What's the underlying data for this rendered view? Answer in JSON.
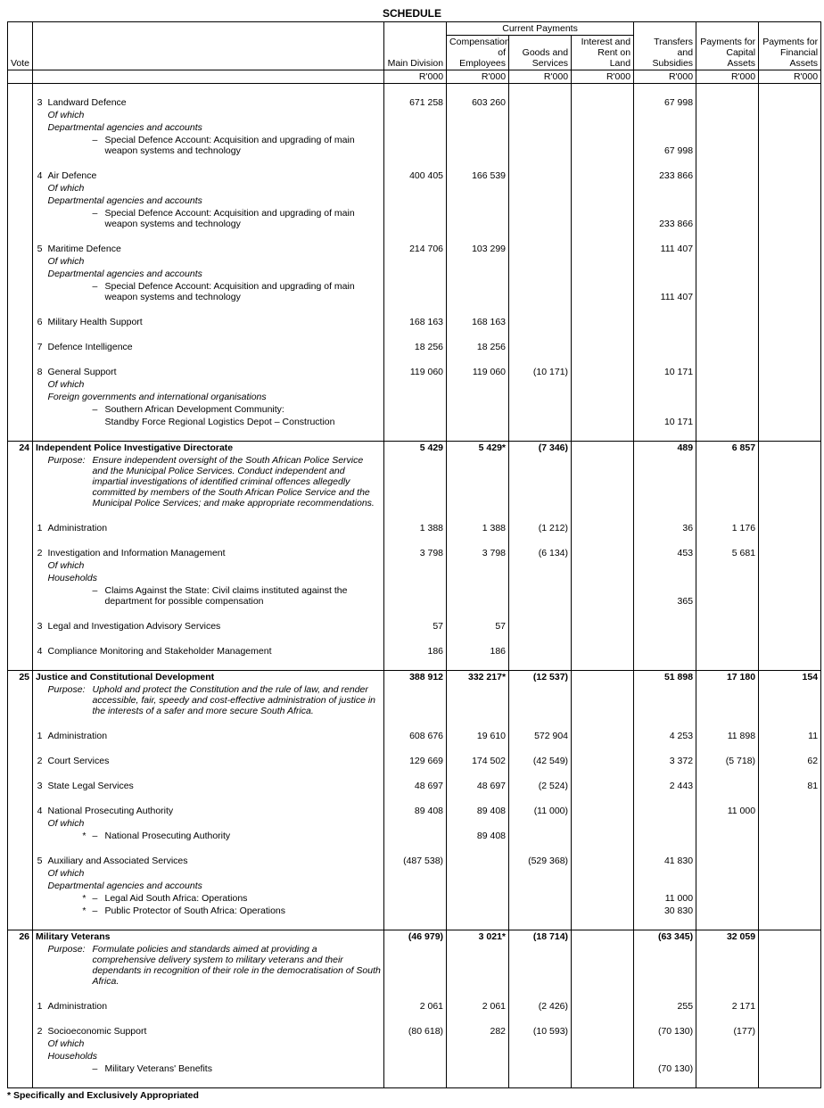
{
  "title": "SCHEDULE",
  "header": {
    "vote": "Vote",
    "current_payments": "Current Payments",
    "main_division": "Main Division",
    "comp_emp": "Compensation of Employees",
    "goods_services": "Goods and Services",
    "interest_rent": "Interest and Rent on Land",
    "transfers": "Transfers and Subsidies",
    "capital": "Payments for Capital Assets",
    "financial": "Payments for Financial Assets",
    "unit": "R'000"
  },
  "r": [
    {
      "t": "item",
      "num": "3",
      "desc": "Landward Defence",
      "v": [
        "671 258",
        "603 260",
        "",
        "",
        "67 998",
        "",
        ""
      ]
    },
    {
      "t": "ofwhich"
    },
    {
      "t": "sub",
      "desc": "Departmental agencies and accounts"
    },
    {
      "t": "dashwrap",
      "desc": "Special Defence Account: Acquisition and upgrading of main weapon systems and technology",
      "v": [
        "",
        "",
        "",
        "",
        "67 998",
        "",
        ""
      ]
    },
    {
      "t": "sp"
    },
    {
      "t": "item",
      "num": "4",
      "desc": "Air Defence",
      "v": [
        "400 405",
        "166 539",
        "",
        "",
        "233 866",
        "",
        ""
      ]
    },
    {
      "t": "ofwhich"
    },
    {
      "t": "sub",
      "desc": "Departmental agencies and accounts"
    },
    {
      "t": "dashwrap",
      "desc": "Special Defence Account: Acquisition and upgrading of main weapon systems and technology",
      "v": [
        "",
        "",
        "",
        "",
        "233 866",
        "",
        ""
      ]
    },
    {
      "t": "sp"
    },
    {
      "t": "item",
      "num": "5",
      "desc": "Maritime Defence",
      "v": [
        "214 706",
        "103 299",
        "",
        "",
        "111 407",
        "",
        ""
      ]
    },
    {
      "t": "ofwhich"
    },
    {
      "t": "sub",
      "desc": "Departmental agencies and accounts"
    },
    {
      "t": "dashwrap",
      "desc": "Special Defence Account: Acquisition and upgrading of main weapon systems and technology",
      "v": [
        "",
        "",
        "",
        "",
        "111 407",
        "",
        ""
      ]
    },
    {
      "t": "sp"
    },
    {
      "t": "item",
      "num": "6",
      "desc": "Military Health Support",
      "v": [
        "168 163",
        "168 163",
        "",
        "",
        "",
        "",
        ""
      ]
    },
    {
      "t": "sp"
    },
    {
      "t": "item",
      "num": "7",
      "desc": "Defence Intelligence",
      "v": [
        "18 256",
        "18 256",
        "",
        "",
        "",
        "",
        ""
      ]
    },
    {
      "t": "sp"
    },
    {
      "t": "item",
      "num": "8",
      "desc": "General Support",
      "v": [
        "119 060",
        "119 060",
        "(10 171)",
        "",
        "10 171",
        "",
        ""
      ]
    },
    {
      "t": "ofwhich"
    },
    {
      "t": "sub",
      "desc": "Foreign governments and international organisations"
    },
    {
      "t": "dash",
      "desc": "Southern African Development Community:",
      "v": [
        "",
        "",
        "",
        "",
        "",
        "",
        ""
      ]
    },
    {
      "t": "cont",
      "desc": "Standby Force Regional Logistics Depot – Construction",
      "v": [
        "",
        "",
        "",
        "",
        "10 171",
        "",
        ""
      ]
    },
    {
      "t": "sp"
    },
    {
      "t": "hr"
    },
    {
      "t": "vote",
      "vote": "24",
      "desc": "Independent Police Investigative Directorate",
      "v": [
        "5 429",
        "5 429*",
        "(7 346)",
        "",
        "489",
        "6 857",
        ""
      ]
    },
    {
      "t": "purpose",
      "desc": "Ensure independent oversight of the South African Police Service and the Municipal Police Services. Conduct independent and impartial investigations of identified criminal offences allegedly committed by members of the South African Police Service and the Municipal Police Services; and make appropriate recommendations."
    },
    {
      "t": "sp"
    },
    {
      "t": "item",
      "num": "1",
      "desc": "Administration",
      "v": [
        "1 388",
        "1 388",
        "(1 212)",
        "",
        "36",
        "1 176",
        ""
      ]
    },
    {
      "t": "sp"
    },
    {
      "t": "item",
      "num": "2",
      "desc": "Investigation and Information Management",
      "v": [
        "3 798",
        "3 798",
        "(6 134)",
        "",
        "453",
        "5 681",
        ""
      ]
    },
    {
      "t": "ofwhich"
    },
    {
      "t": "sub",
      "desc": "Households"
    },
    {
      "t": "dashwrap",
      "desc": "Claims Against the State: Civil claims instituted against the department for possible compensation",
      "v": [
        "",
        "",
        "",
        "",
        "365",
        "",
        ""
      ]
    },
    {
      "t": "sp"
    },
    {
      "t": "item",
      "num": "3",
      "desc": "Legal and Investigation Advisory Services",
      "v": [
        "57",
        "57",
        "",
        "",
        "",
        "",
        ""
      ]
    },
    {
      "t": "sp"
    },
    {
      "t": "item",
      "num": "4",
      "desc": "Compliance Monitoring and Stakeholder Management",
      "v": [
        "186",
        "186",
        "",
        "",
        "",
        "",
        ""
      ]
    },
    {
      "t": "sp"
    },
    {
      "t": "hr"
    },
    {
      "t": "vote",
      "vote": "25",
      "desc": "Justice and Constitutional Development",
      "v": [
        "388 912",
        "332 217*",
        "(12 537)",
        "",
        "51 898",
        "17 180",
        "154"
      ]
    },
    {
      "t": "purpose",
      "desc": "Uphold and protect the Constitution and the rule of law, and render accessible, fair, speedy and cost-effective administration of justice in the interests of a safer and more secure South Africa."
    },
    {
      "t": "sp"
    },
    {
      "t": "item",
      "num": "1",
      "desc": "Administration",
      "v": [
        "608 676",
        "19 610",
        "572 904",
        "",
        "4 253",
        "11 898",
        "11"
      ]
    },
    {
      "t": "sp"
    },
    {
      "t": "item",
      "num": "2",
      "desc": "Court Services",
      "v": [
        "129 669",
        "174 502",
        "(42 549)",
        "",
        "3 372",
        "(5 718)",
        "62"
      ]
    },
    {
      "t": "sp"
    },
    {
      "t": "item",
      "num": "3",
      "desc": "State Legal Services",
      "v": [
        "48 697",
        "48 697",
        "(2 524)",
        "",
        "2 443",
        "",
        "81"
      ]
    },
    {
      "t": "sp"
    },
    {
      "t": "item",
      "num": "4",
      "desc": "National Prosecuting Authority",
      "v": [
        "89 408",
        "89 408",
        "(11 000)",
        "",
        "",
        "11 000",
        ""
      ]
    },
    {
      "t": "ofwhich"
    },
    {
      "t": "dashstar",
      "desc": "National Prosecuting Authority",
      "v": [
        "",
        "89 408",
        "",
        "",
        "",
        "",
        ""
      ]
    },
    {
      "t": "sp"
    },
    {
      "t": "item",
      "num": "5",
      "desc": "Auxiliary and Associated Services",
      "v": [
        "(487 538)",
        "",
        "(529 368)",
        "",
        "41 830",
        "",
        ""
      ]
    },
    {
      "t": "ofwhich"
    },
    {
      "t": "sub",
      "desc": "Departmental agencies and accounts"
    },
    {
      "t": "dashstar",
      "desc": "Legal Aid South Africa: Operations",
      "v": [
        "",
        "",
        "",
        "",
        "11 000",
        "",
        ""
      ]
    },
    {
      "t": "dashstar",
      "desc": "Public Protector of South Africa: Operations",
      "v": [
        "",
        "",
        "",
        "",
        "30 830",
        "",
        ""
      ]
    },
    {
      "t": "sp"
    },
    {
      "t": "hr"
    },
    {
      "t": "vote",
      "vote": "26",
      "desc": "Military Veterans",
      "v": [
        "(46 979)",
        "3 021*",
        "(18 714)",
        "",
        "(63 345)",
        "32 059",
        ""
      ]
    },
    {
      "t": "purpose",
      "desc": "Formulate policies and standards aimed at providing a comprehensive delivery system to military veterans and their dependants in recognition of their role in the democratisation of South Africa."
    },
    {
      "t": "sp"
    },
    {
      "t": "item",
      "num": "1",
      "desc": "Administration",
      "v": [
        "2 061",
        "2 061",
        "(2 426)",
        "",
        "255",
        "2 171",
        ""
      ]
    },
    {
      "t": "sp"
    },
    {
      "t": "item",
      "num": "2",
      "desc": "Socioeconomic Support",
      "v": [
        "(80 618)",
        "282",
        "(10 593)",
        "",
        "(70 130)",
        "(177)",
        ""
      ]
    },
    {
      "t": "ofwhich"
    },
    {
      "t": "sub",
      "desc": "Households"
    },
    {
      "t": "dash",
      "desc": "Military Veterans' Benefits",
      "v": [
        "",
        "",
        "",
        "",
        "(70 130)",
        "",
        ""
      ]
    },
    {
      "t": "sp"
    }
  ],
  "footnote": "*  Specifically and Exclusively Appropriated"
}
